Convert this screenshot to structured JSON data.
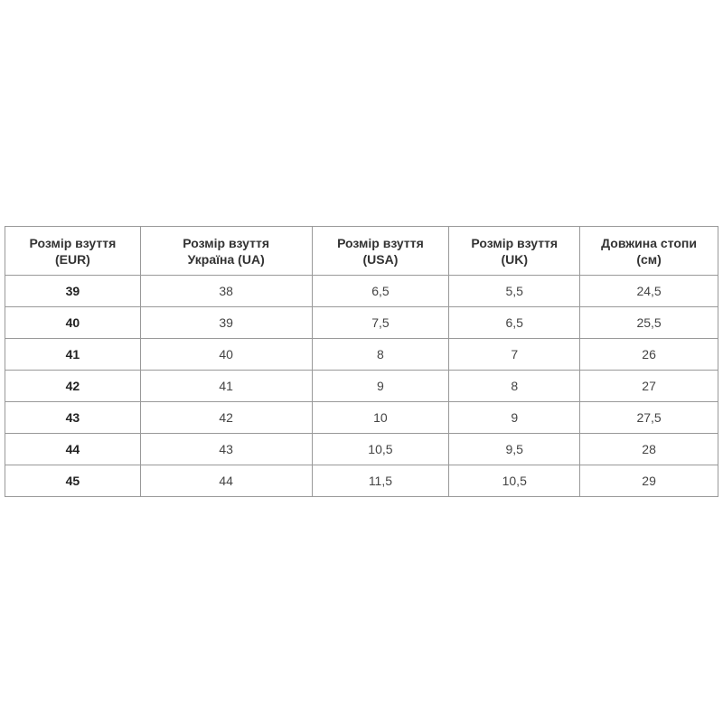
{
  "table": {
    "headers": [
      [
        "Розмір взуття",
        "(EUR)"
      ],
      [
        "Розмір взуття",
        "Україна (UA)"
      ],
      [
        "Розмір взуття",
        "(USA)"
      ],
      [
        "Розмір взуття",
        "(UK)"
      ],
      [
        "Довжина стопи",
        "(см)"
      ]
    ],
    "rows": [
      [
        "39",
        "38",
        "6,5",
        "5,5",
        "24,5"
      ],
      [
        "40",
        "39",
        "7,5",
        "6,5",
        "25,5"
      ],
      [
        "41",
        "40",
        "8",
        "7",
        "26"
      ],
      [
        "42",
        "41",
        "9",
        "8",
        "27"
      ],
      [
        "43",
        "42",
        "10",
        "9",
        "27,5"
      ],
      [
        "44",
        "43",
        "10,5",
        "9,5",
        "28"
      ],
      [
        "45",
        "44",
        "11,5",
        "10,5",
        "29"
      ]
    ]
  }
}
